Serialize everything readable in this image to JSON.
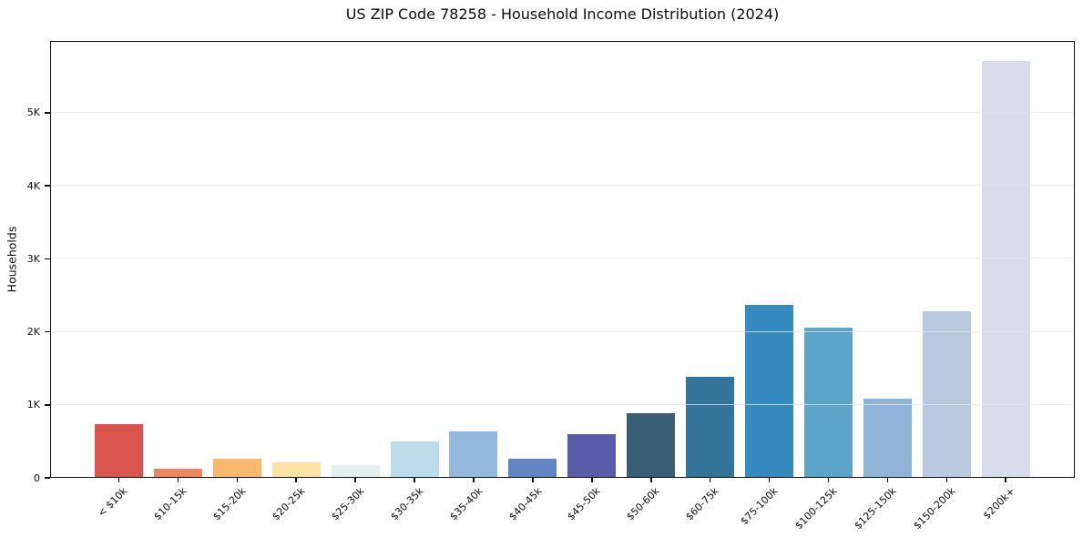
{
  "figure": {
    "background": "#ffffff"
  },
  "chart_data": {
    "type": "bar",
    "title": "US ZIP Code 78258 - Household Income Distribution (2024)",
    "xlabel": "",
    "ylabel": "Households",
    "categories": [
      "< $10k",
      "$10-15k",
      "$15-20k",
      "$20-25k",
      "$25-30k",
      "$30-35k",
      "$35-40k",
      "$40-45k",
      "$45-50k",
      "$50-60k",
      "$60-75k",
      "$75-100k",
      "$100-125k",
      "$125-150k",
      "$150-200k",
      "$200k+"
    ],
    "values": [
      740,
      125,
      260,
      215,
      180,
      505,
      640,
      265,
      600,
      880,
      1390,
      2370,
      2060,
      1090,
      2280,
      5710
    ],
    "bar_colors": [
      "#d9554e",
      "#ef8660",
      "#f9b96d",
      "#fde2a5",
      "#e4f0f0",
      "#bcdcec",
      "#92b9dc",
      "#6286c3",
      "#5b5bab",
      "#375e72",
      "#33749a",
      "#358bc0",
      "#5ba5ca",
      "#8fb4d8",
      "#b8c9e0",
      "#d9dcea"
    ],
    "yticks": {
      "values": [
        0,
        1000,
        2000,
        3000,
        4000,
        5000
      ],
      "labels": [
        "0",
        "1K",
        "2K",
        "3K",
        "4K",
        "5K"
      ]
    },
    "ylim": [
      0,
      5985
    ],
    "grid": "horizontal",
    "legend": "none",
    "axis_color": "#111111",
    "grid_color": "#e4e9ed"
  }
}
